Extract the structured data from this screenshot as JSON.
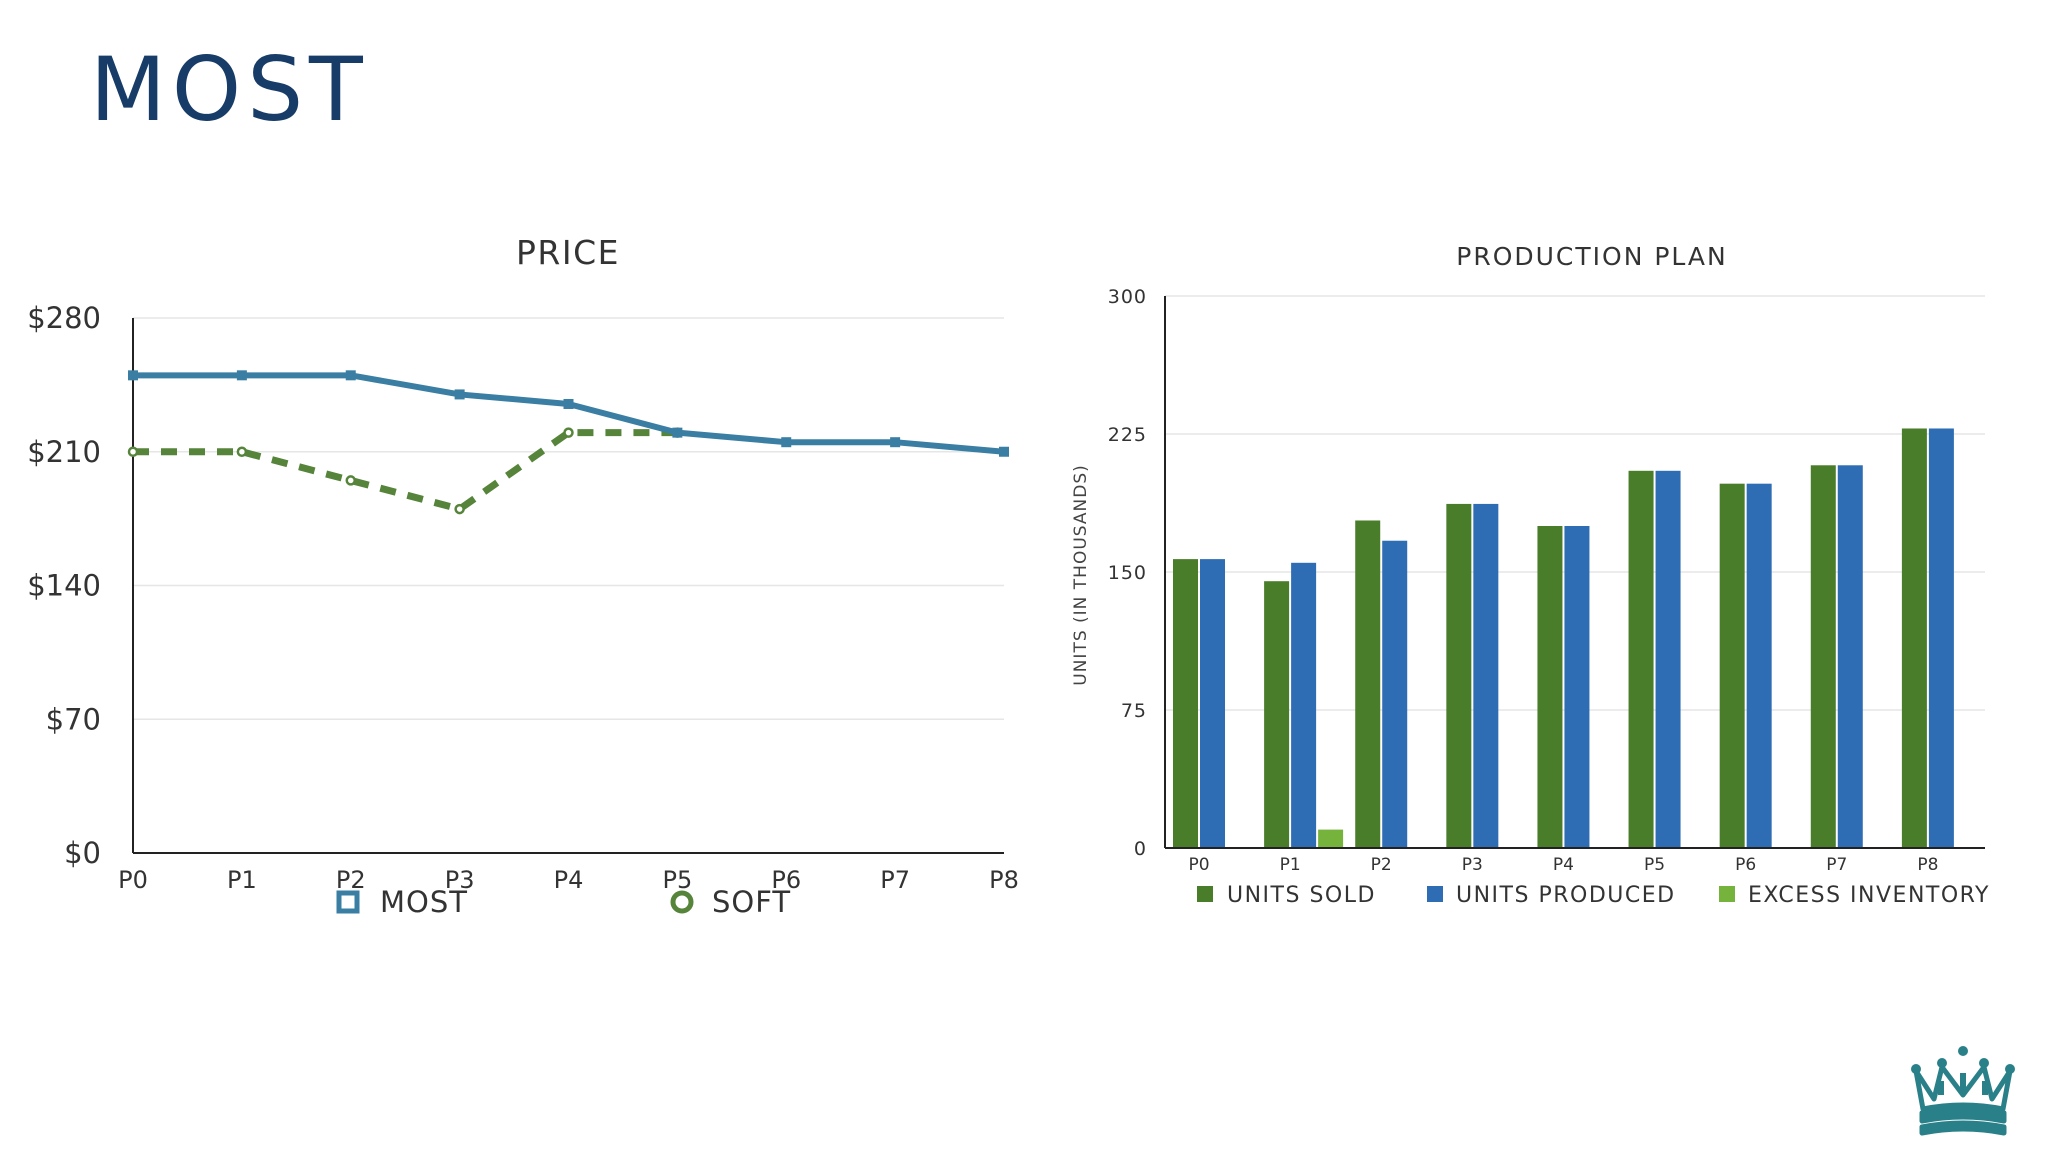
{
  "slide": {
    "title": "MOST"
  },
  "colors": {
    "title": "#173c68",
    "most": "#3a7ea3",
    "soft": "#55843a",
    "units_sold": "#4a7d2a",
    "units_produced": "#2e6db3",
    "excess_inventory": "#76b33c",
    "logo": "#2a8089"
  },
  "logo": {
    "icon": "crown-icon"
  },
  "chart_data": [
    {
      "id": "price",
      "type": "line",
      "title": "PRICE",
      "categories": [
        "P0",
        "P1",
        "P2",
        "P3",
        "P4",
        "P5",
        "P6",
        "P7",
        "P8"
      ],
      "ylim": [
        0,
        280
      ],
      "yticks": [
        "$0",
        "$70",
        "$140",
        "$210",
        "$280"
      ],
      "ytick_values": [
        0,
        70,
        140,
        210,
        280
      ],
      "series": [
        {
          "name": "MOST",
          "marker": "square",
          "style": "solid",
          "values": [
            250,
            250,
            250,
            240,
            235,
            220,
            215,
            215,
            210
          ]
        },
        {
          "name": "SOFT",
          "marker": "circle",
          "style": "dashed",
          "values": [
            210,
            210,
            195,
            180,
            220,
            220,
            null,
            null,
            null
          ]
        }
      ],
      "legend": "bottom"
    },
    {
      "id": "production",
      "type": "bar",
      "title": "PRODUCTION PLAN",
      "ylabel": "UNITS (IN THOUSANDS)",
      "categories": [
        "P0",
        "P1",
        "P2",
        "P3",
        "P4",
        "P5",
        "P6",
        "P7",
        "P8"
      ],
      "ylim": [
        0,
        300
      ],
      "yticks": [
        "0",
        "75",
        "150",
        "225",
        "300"
      ],
      "ytick_values": [
        0,
        75,
        150,
        225,
        300
      ],
      "series": [
        {
          "name": "UNITS SOLD",
          "values": [
            157,
            145,
            178,
            187,
            175,
            205,
            198,
            208,
            228
          ]
        },
        {
          "name": "UNITS PRODUCED",
          "values": [
            157,
            155,
            167,
            187,
            175,
            205,
            198,
            208,
            228
          ]
        },
        {
          "name": "EXCESS INVENTORY",
          "values": [
            0,
            10,
            0,
            0,
            0,
            0,
            0,
            0,
            0
          ]
        }
      ],
      "legend": "bottom"
    }
  ]
}
